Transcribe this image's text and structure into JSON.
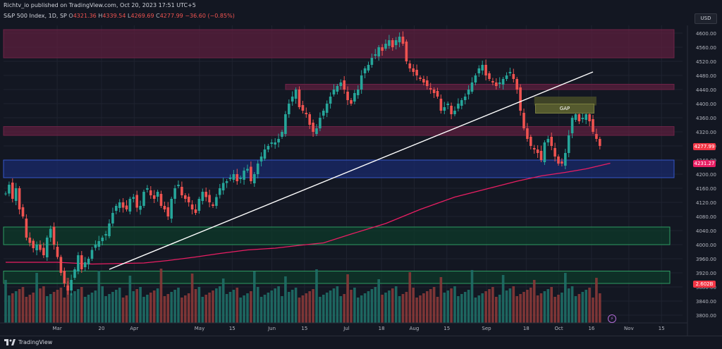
{
  "header": {
    "publisher": "Richtv_io published on TradingView.com, Oct 20, 2023 17:51 UTC+5",
    "symbol": "S&P 500 Index, 1D, SP",
    "open_label": "O",
    "open": "4321.36",
    "high_label": "H",
    "high": "4339.54",
    "low_label": "L",
    "low": "4269.69",
    "close_label": "C",
    "close": "4277.99",
    "change": "−36.60 (−0.85%)",
    "currency": "USD"
  },
  "footer": {
    "brand": "TradingView",
    "logo_icon": "tradingview-logo-icon"
  },
  "colors": {
    "background": "#131722",
    "up": "#26a69a",
    "down": "#ef5350",
    "ma": "#e91e63",
    "resistance_zone": "#5c1f3e",
    "support_blue": "#1a2a6b",
    "support_green": "#0e3a2a"
  },
  "annotations": {
    "gap_label": "GAP",
    "last_price_badge": "4277.99",
    "ma_badge": "4231.27",
    "volume_badge": "2.602B",
    "bolt_icon": "⚡"
  },
  "chart_data": {
    "type": "candlestick",
    "title": "S&P 500 Index, 1D, SP",
    "price_ticks": [
      4600,
      4560,
      4520,
      4480,
      4440,
      4400,
      4360,
      4320,
      4280,
      4240,
      4200,
      4160,
      4120,
      4080,
      4040,
      4000,
      3960,
      3920,
      3880,
      3840,
      3800
    ],
    "ylim": [
      3780,
      4620
    ],
    "x_ticks": [
      {
        "label": "Mar",
        "date": "2023-03-01"
      },
      {
        "label": "20",
        "date": "2023-03-20"
      },
      {
        "label": "Apr",
        "date": "2023-04-03"
      },
      {
        "label": "May",
        "date": "2023-05-01"
      },
      {
        "label": "15",
        "date": "2023-05-15"
      },
      {
        "label": "Jun",
        "date": "2023-06-01"
      },
      {
        "label": "15",
        "date": "2023-06-15"
      },
      {
        "label": "Jul",
        "date": "2023-07-03"
      },
      {
        "label": "18",
        "date": "2023-07-18"
      },
      {
        "label": "Aug",
        "date": "2023-08-01"
      },
      {
        "label": "15",
        "date": "2023-08-15"
      },
      {
        "label": "Sep",
        "date": "2023-09-01"
      },
      {
        "label": "18",
        "date": "2023-09-18"
      },
      {
        "label": "Oct",
        "date": "2023-10-02"
      },
      {
        "label": "16",
        "date": "2023-10-16"
      },
      {
        "label": "Nov",
        "date": "2023-11-01"
      },
      {
        "label": "15",
        "date": "2023-11-15"
      }
    ],
    "xlim": [
      "2023-02-06",
      "2023-11-24"
    ],
    "closes": [
      4145,
      4170,
      4130,
      4160,
      4100,
      4080,
      4020,
      4005,
      3990,
      4000,
      3985,
      3970,
      4020,
      4045,
      4000,
      3965,
      3920,
      3890,
      3870,
      3900,
      3930,
      3970,
      3930,
      3950,
      3960,
      3985,
      4000,
      4010,
      4020,
      4030,
      4060,
      4090,
      4110,
      4120,
      4105,
      4100,
      4130,
      4135,
      4105,
      4110,
      4150,
      4160,
      4140,
      4130,
      4150,
      4110,
      4100,
      4080,
      4130,
      4160,
      4170,
      4140,
      4130,
      4120,
      4100,
      4090,
      4130,
      4150,
      4135,
      4120,
      4110,
      4135,
      4160,
      4175,
      4180,
      4190,
      4200,
      4180,
      4190,
      4210,
      4215,
      4180,
      4200,
      4230,
      4250,
      4270,
      4280,
      4290,
      4290,
      4300,
      4320,
      4370,
      4400,
      4420,
      4440,
      4390,
      4380,
      4370,
      4340,
      4320,
      4330,
      4360,
      4380,
      4400,
      4420,
      4440,
      4450,
      4460,
      4440,
      4410,
      4400,
      4430,
      4440,
      4480,
      4500,
      4510,
      4530,
      4540,
      4560,
      4550,
      4570,
      4580,
      4560,
      4580,
      4590,
      4570,
      4520,
      4500,
      4490,
      4480,
      4470,
      4460,
      4450,
      4440,
      4430,
      4420,
      4380,
      4390,
      4400,
      4370,
      4380,
      4400,
      4410,
      4420,
      4440,
      4460,
      4480,
      4500,
      4510,
      4480,
      4470,
      4460,
      4450,
      4460,
      4470,
      4480,
      4490,
      4470,
      4440,
      4380,
      4330,
      4300,
      4280,
      4270,
      4260,
      4240,
      4290,
      4300,
      4280,
      4250,
      4230,
      4230,
      4260,
      4310,
      4360,
      4370,
      4350,
      4360,
      4370,
      4350,
      4320,
      4300,
      4280
    ],
    "last_close": 4277.99,
    "moving_average": {
      "label": "4231.27",
      "points": [
        [
          0,
          3950
        ],
        [
          15,
          3950
        ],
        [
          25,
          3945
        ],
        [
          35,
          3947
        ],
        [
          40,
          3948
        ],
        [
          47,
          3955
        ],
        [
          55,
          3965
        ],
        [
          62,
          3975
        ],
        [
          70,
          3985
        ],
        [
          78,
          3990
        ],
        [
          85,
          3998
        ],
        [
          92,
          4005
        ],
        [
          100,
          4030
        ],
        [
          110,
          4060
        ],
        [
          120,
          4100
        ],
        [
          130,
          4135
        ],
        [
          140,
          4160
        ],
        [
          148,
          4180
        ],
        [
          155,
          4195
        ],
        [
          162,
          4205
        ],
        [
          168,
          4215
        ],
        [
          175,
          4231
        ]
      ]
    },
    "zones": [
      {
        "type": "resistance",
        "from": 4530,
        "to": 4610
      },
      {
        "type": "resistance",
        "from": 4440,
        "to": 4455
      },
      {
        "type": "resistance",
        "from": 4310,
        "to": 4335
      },
      {
        "type": "support",
        "from": 4190,
        "to": 4240
      },
      {
        "type": "support",
        "from": 4000,
        "to": 4050
      },
      {
        "type": "support",
        "from": 3890,
        "to": 3925
      }
    ],
    "gap_box": {
      "from": 4395,
      "to": 4420,
      "start": 153,
      "end": 171
    },
    "trendline": {
      "start": [
        30,
        3930
      ],
      "end": [
        170,
        4490
      ]
    },
    "volume_last": "2.602B"
  }
}
